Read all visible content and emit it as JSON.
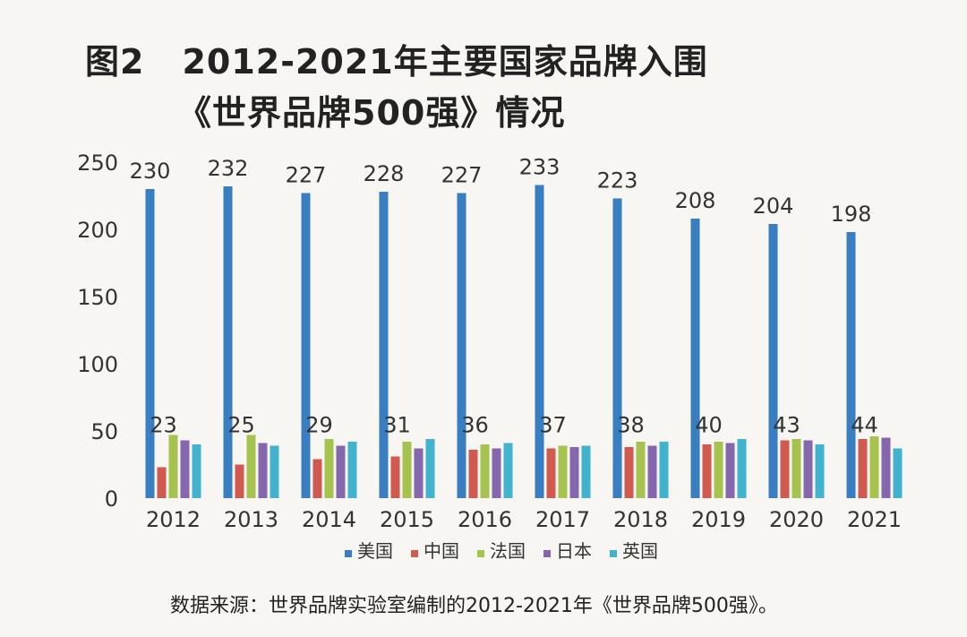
{
  "figure_label": "图2",
  "title_line1": "2012-2021年主要国家品牌入围",
  "title_line2": "《世界品牌500强》情况",
  "source": "数据来源：世界品牌实验室编制的2012-2021年《世界品牌500强》。",
  "chart_data": {
    "type": "bar",
    "title": "图2 2012-2021年主要国家品牌入围《世界品牌500强》情况",
    "xlabel": "",
    "ylabel": "",
    "ylim": [
      0,
      250
    ],
    "yticks": [
      0,
      50,
      100,
      150,
      200,
      250
    ],
    "grid": false,
    "legend_position": "bottom",
    "categories": [
      "2012",
      "2013",
      "2014",
      "2015",
      "2016",
      "2017",
      "2018",
      "2019",
      "2020",
      "2021"
    ],
    "series": [
      {
        "name": "美国",
        "color": "#3a7ec2",
        "values": [
          230,
          232,
          227,
          228,
          227,
          233,
          223,
          208,
          204,
          198
        ],
        "labeled": true
      },
      {
        "name": "中国",
        "color": "#d05a50",
        "values": [
          23,
          25,
          29,
          31,
          36,
          37,
          38,
          40,
          43,
          44
        ],
        "labeled": true
      },
      {
        "name": "法国",
        "color": "#a6c34f",
        "values": [
          47,
          47,
          44,
          42,
          40,
          39,
          42,
          42,
          44,
          46
        ],
        "labeled": false
      },
      {
        "name": "日本",
        "color": "#8467ad",
        "values": [
          43,
          41,
          39,
          37,
          37,
          38,
          39,
          41,
          43,
          45
        ],
        "labeled": false
      },
      {
        "name": "英国",
        "color": "#42b3cf",
        "values": [
          40,
          39,
          42,
          44,
          41,
          39,
          42,
          44,
          40,
          37
        ],
        "labeled": false
      }
    ]
  }
}
